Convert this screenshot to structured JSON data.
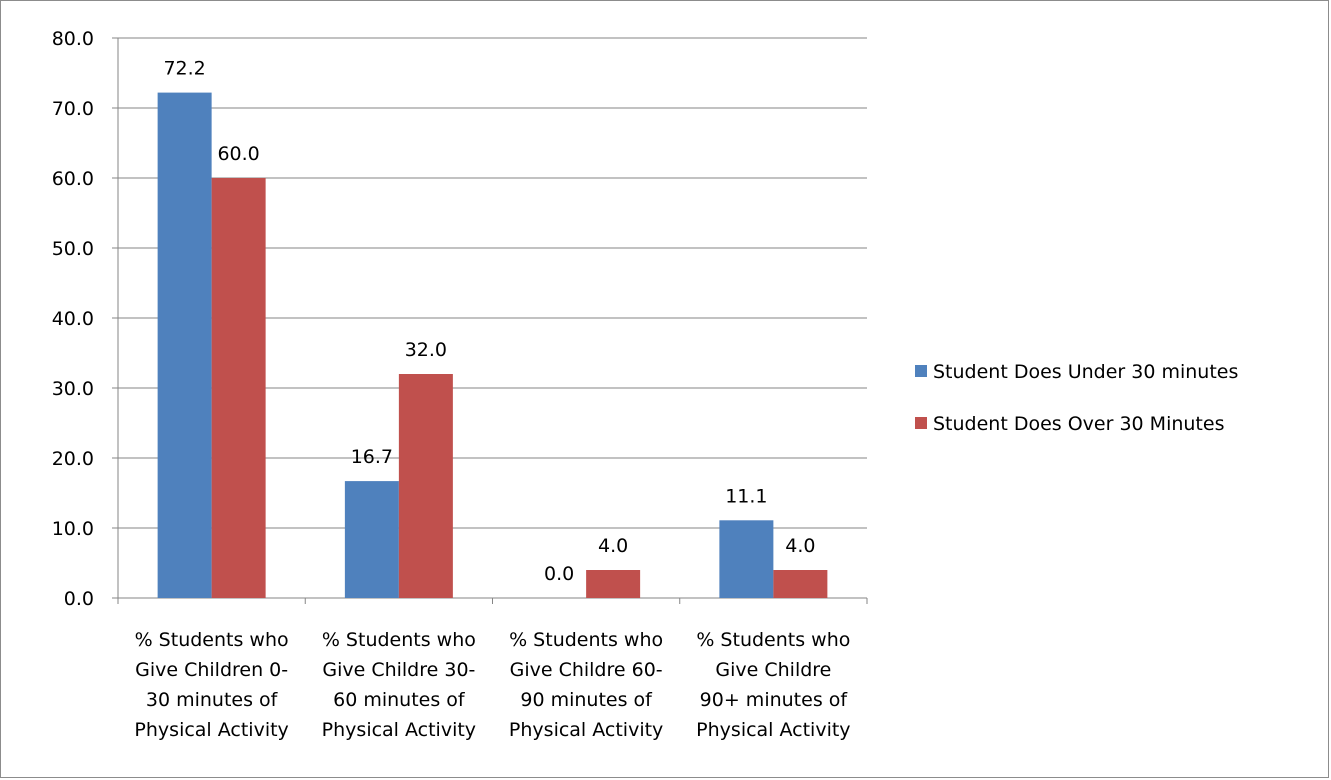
{
  "chart_data": {
    "type": "bar",
    "categories": [
      [
        "% Students who",
        "Give Children 0-",
        "30 minutes of",
        "Physical Activity"
      ],
      [
        "% Students who",
        "Give Childre 30-",
        "60 minutes of",
        "Physical Activity"
      ],
      [
        "% Students who",
        "Give Childre 60-",
        "90 minutes of",
        "Physical Activity"
      ],
      [
        "% Students who",
        "Give Childre",
        "90+ minutes of",
        "Physical Activity"
      ]
    ],
    "series": [
      {
        "name": "Student Does Under 30 minutes",
        "values": [
          72.2,
          16.7,
          0.0,
          11.1
        ],
        "color": "#4f81bd"
      },
      {
        "name": "Student Does Over 30 Minutes",
        "values": [
          60.0,
          32.0,
          4.0,
          4.0
        ],
        "color": "#c0504d"
      }
    ],
    "ylim": [
      0,
      80
    ],
    "yticks": [
      "0.0",
      "10.0",
      "20.0",
      "30.0",
      "40.0",
      "50.0",
      "60.0",
      "70.0",
      "80.0"
    ],
    "value_format_decimals": 1,
    "grid": true,
    "legend_position": "right",
    "title": "",
    "xlabel": "",
    "ylabel": ""
  }
}
